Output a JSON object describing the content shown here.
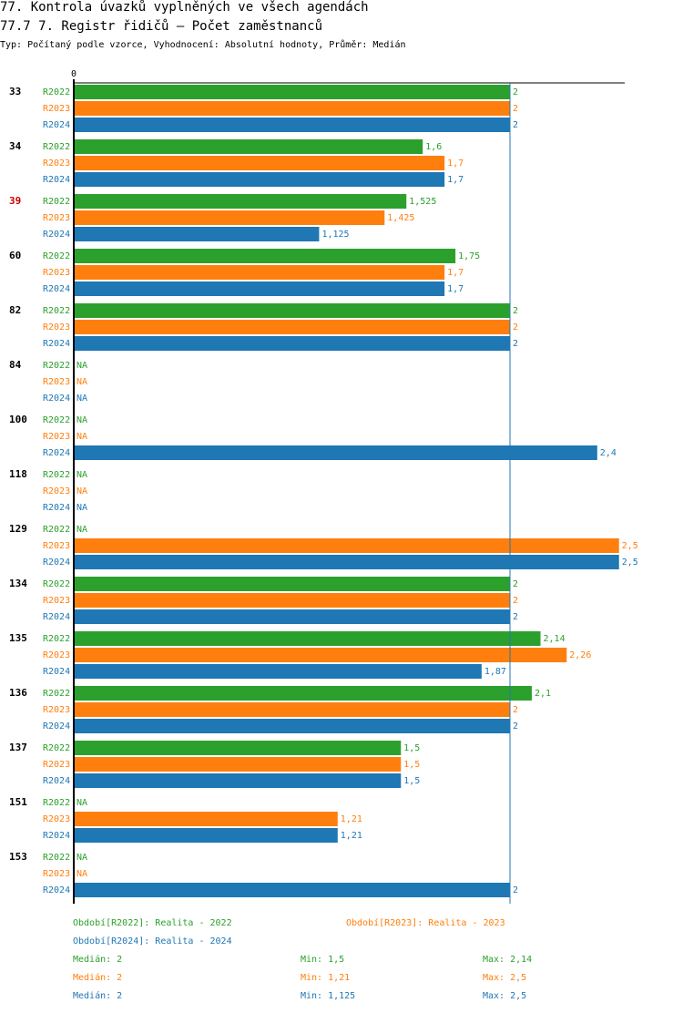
{
  "title_line1": "77. Kontrola úvazků vyplněných ve všech agendách",
  "title_line2": "77.7 7. Registr řidičů – Počet zaměstnanců",
  "subtitle": "Typ: Počítaný podle vzorce, Vyhodnocení: Absolutní hodnoty, Průměr: Medián",
  "colors": {
    "R2022": "#2ca02c",
    "R2023": "#ff7f0e",
    "R2024": "#1f77b4",
    "highlight": "#cc0000"
  },
  "chart_data": {
    "type": "bar",
    "orientation": "horizontal",
    "axis_zero_label": "0",
    "xlim": [
      0,
      2.5
    ],
    "reference_line": {
      "label": "Medián",
      "value": 2
    },
    "na_label": "NA",
    "series_names": [
      "R2022",
      "R2023",
      "R2024"
    ],
    "groups": [
      {
        "label": "33",
        "highlight": false,
        "values": [
          2,
          2,
          2
        ],
        "labels": [
          "2",
          "2",
          "2"
        ]
      },
      {
        "label": "34",
        "highlight": false,
        "values": [
          1.6,
          1.7,
          1.7
        ],
        "labels": [
          "1,6",
          "1,7",
          "1,7"
        ]
      },
      {
        "label": "39",
        "highlight": true,
        "values": [
          1.525,
          1.425,
          1.125
        ],
        "labels": [
          "1,525",
          "1,425",
          "1,125"
        ]
      },
      {
        "label": "60",
        "highlight": false,
        "values": [
          1.75,
          1.7,
          1.7
        ],
        "labels": [
          "1,75",
          "1,7",
          "1,7"
        ]
      },
      {
        "label": "82",
        "highlight": false,
        "values": [
          2,
          2,
          2
        ],
        "labels": [
          "2",
          "2",
          "2"
        ]
      },
      {
        "label": "84",
        "highlight": false,
        "values": [
          null,
          null,
          null
        ],
        "labels": [
          "NA",
          "NA",
          "NA"
        ]
      },
      {
        "label": "100",
        "highlight": false,
        "values": [
          null,
          null,
          2.4
        ],
        "labels": [
          "NA",
          "NA",
          "2,4"
        ]
      },
      {
        "label": "118",
        "highlight": false,
        "values": [
          null,
          null,
          null
        ],
        "labels": [
          "NA",
          "NA",
          "NA"
        ]
      },
      {
        "label": "129",
        "highlight": false,
        "values": [
          null,
          2.5,
          2.5
        ],
        "labels": [
          "NA",
          "2,5",
          "2,5"
        ]
      },
      {
        "label": "134",
        "highlight": false,
        "values": [
          2,
          2,
          2
        ],
        "labels": [
          "2",
          "2",
          "2"
        ]
      },
      {
        "label": "135",
        "highlight": false,
        "values": [
          2.14,
          2.26,
          1.87
        ],
        "labels": [
          "2,14",
          "2,26",
          "1,87"
        ]
      },
      {
        "label": "136",
        "highlight": false,
        "values": [
          2.1,
          2,
          2
        ],
        "labels": [
          "2,1",
          "2",
          "2"
        ]
      },
      {
        "label": "137",
        "highlight": false,
        "values": [
          1.5,
          1.5,
          1.5
        ],
        "labels": [
          "1,5",
          "1,5",
          "1,5"
        ]
      },
      {
        "label": "151",
        "highlight": false,
        "values": [
          null,
          1.21,
          1.21
        ],
        "labels": [
          "NA",
          "1,21",
          "1,21"
        ]
      },
      {
        "label": "153",
        "highlight": false,
        "values": [
          null,
          null,
          2
        ],
        "labels": [
          "NA",
          "NA",
          "2"
        ]
      }
    ],
    "legend": {
      "r2022": "Období[R2022]: Realita - 2022",
      "r2023": "Období[R2023]: Realita - 2023",
      "r2024": "Období[R2024]: Realita - 2024"
    },
    "stats": [
      {
        "series": "R2022",
        "median": "Medián: 2",
        "min": "Min: 1,5",
        "max": "Max: 2,14"
      },
      {
        "series": "R2023",
        "median": "Medián: 2",
        "min": "Min: 1,21",
        "max": "Max: 2,5"
      },
      {
        "series": "R2024",
        "median": "Medián: 2",
        "min": "Min: 1,125",
        "max": "Max: 2,5"
      }
    ]
  }
}
